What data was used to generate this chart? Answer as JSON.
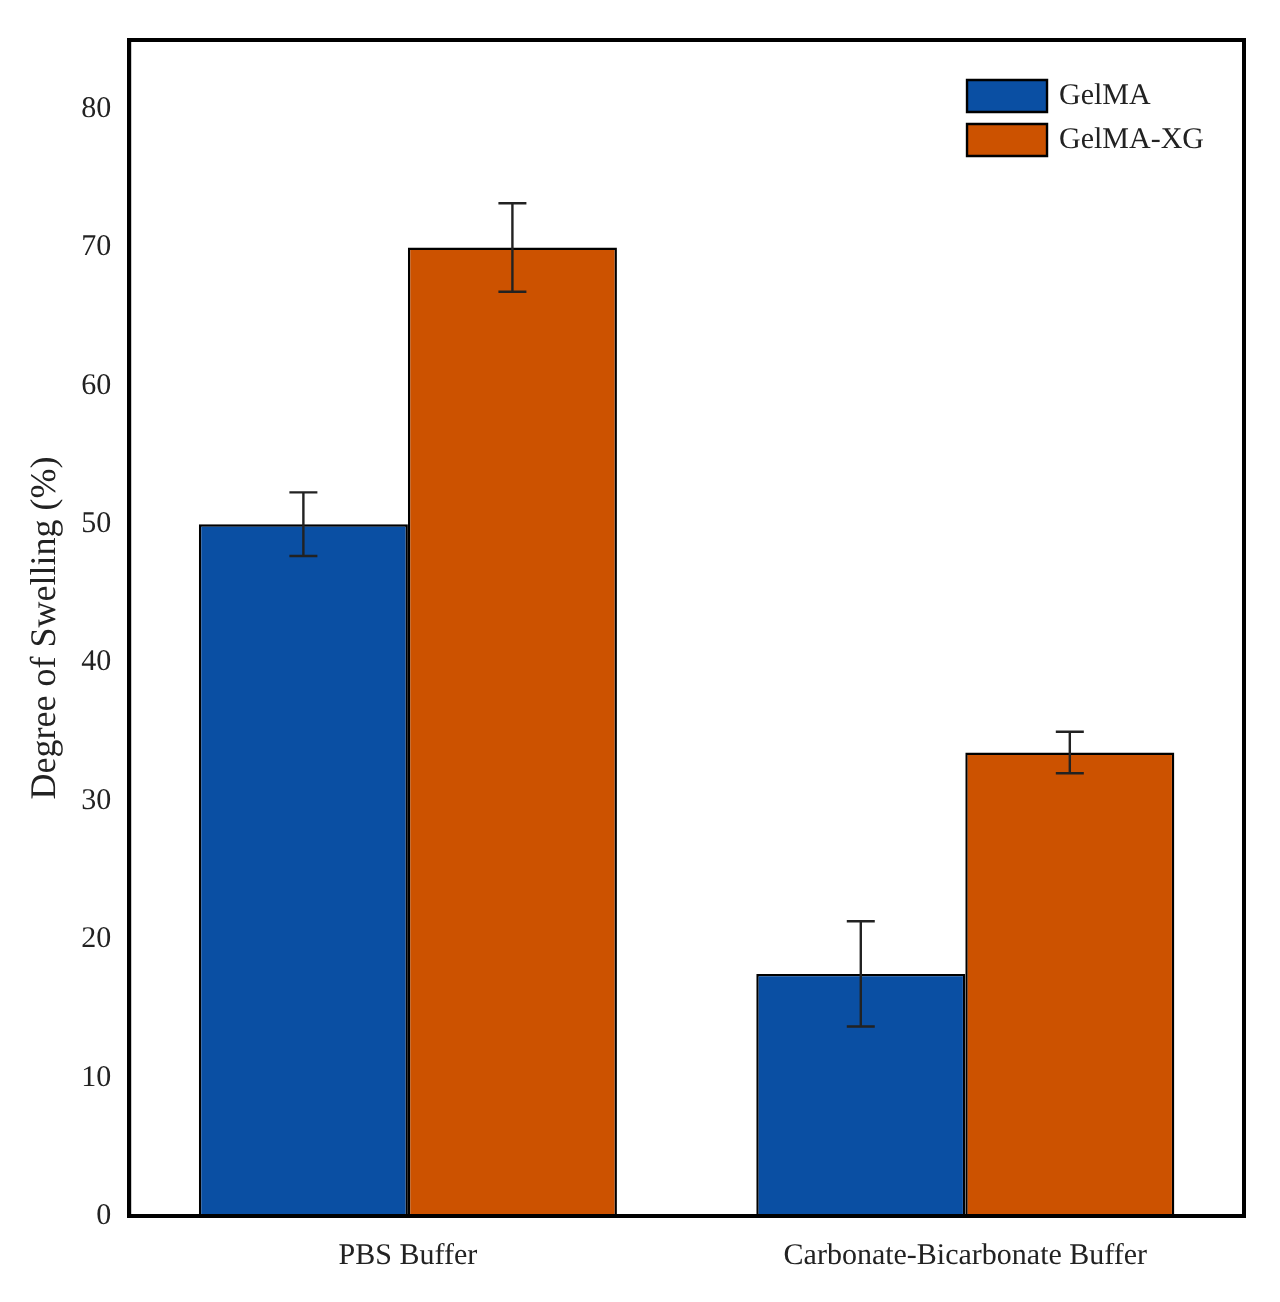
{
  "chart_data": {
    "type": "bar",
    "ylabel": "Degree of Swelling (%)",
    "categories": [
      "PBS Buffer",
      "Carbonate-Bicarbonate Buffer"
    ],
    "series": [
      {
        "name": "GelMA",
        "color": "#0a4fa3",
        "values": [
          50,
          17.5
        ],
        "errors": [
          2.3,
          3.8
        ]
      },
      {
        "name": "GelMA-XG",
        "color": "#cc5200",
        "values": [
          70,
          33.5
        ],
        "errors": [
          3.2,
          1.5
        ]
      }
    ],
    "ylim": [
      0,
      85
    ],
    "yticks": [
      0,
      10,
      20,
      30,
      40,
      50,
      60,
      70,
      80
    ],
    "grid": false,
    "legend": "top right"
  }
}
